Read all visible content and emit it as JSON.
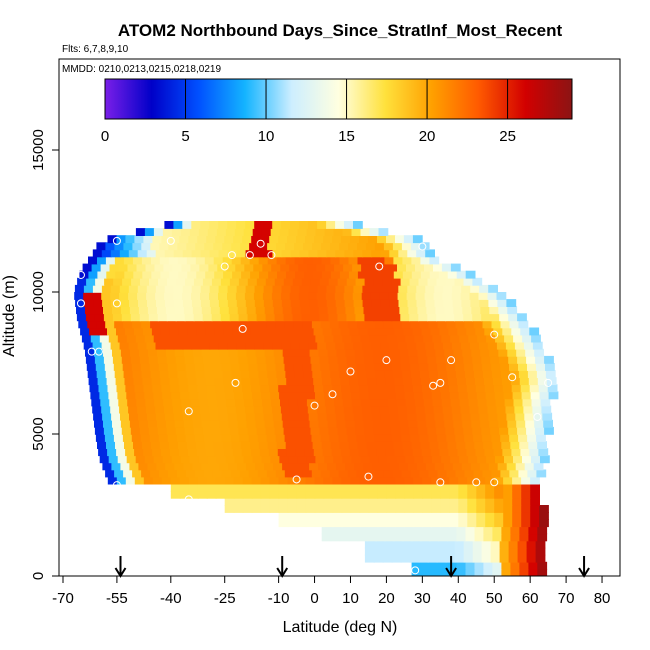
{
  "chart_data": {
    "type": "heatmap",
    "title": "ATOM2 Northbound Days_Since_StratInf_Most_Recent",
    "subtitle": "Flts: 6,7,8,9,10",
    "annotation": "MMDD: 0210,0213,0215,0218,0219",
    "xlabel": "Latitude (deg N)",
    "ylabel": "Altitude (m)",
    "xlim": [
      -70,
      85
    ],
    "ylim": [
      0,
      17000
    ],
    "x_tick_labels": [
      "-70",
      "-55",
      "-40",
      "-25",
      "-10",
      "0",
      "10",
      "20",
      "30",
      "40",
      "50",
      "60",
      "70",
      "80"
    ],
    "x_tick_values": [
      -70,
      -55,
      -40,
      -25,
      -10,
      0,
      10,
      20,
      30,
      40,
      50,
      60,
      70,
      80
    ],
    "y_tick_labels": [
      "0",
      "5000",
      "10000",
      "15000"
    ],
    "y_tick_values": [
      0,
      5000,
      10000,
      15000
    ],
    "colorbar": {
      "range": [
        0,
        29
      ],
      "tick_labels": [
        "0",
        "5",
        "10",
        "15",
        "20",
        "25"
      ],
      "tick_values": [
        0,
        5,
        10,
        15,
        20,
        25
      ],
      "colors": [
        "#7a1fe8",
        "#0000c8",
        "#0050ff",
        "#14b4ff",
        "#cdeeff",
        "#ffffe0",
        "#ffe13c",
        "#ffa000",
        "#ff5a00",
        "#d20000",
        "#8c1414"
      ]
    },
    "arrows_latitude": [
      -54,
      -9,
      38,
      75
    ],
    "marker_lats": [
      -25,
      -65,
      -40,
      -55,
      -15,
      -23,
      -18,
      18,
      30,
      -65,
      -60,
      -35,
      -62,
      -20,
      -65,
      33,
      0,
      50,
      10,
      35,
      -55,
      15,
      65,
      -35,
      -12,
      5,
      55,
      62,
      -55,
      -5,
      50,
      35,
      28,
      45,
      -22,
      38,
      20
    ],
    "marker_alts": [
      10900,
      10600,
      11800,
      9600,
      11700,
      11300,
      11300,
      10900,
      11600,
      9600,
      7900,
      5800,
      7900,
      8700,
      3200,
      6700,
      6000,
      8500,
      7200,
      6800,
      3200,
      3500,
      6800,
      2700,
      11300,
      6400,
      7000,
      5600,
      11800,
      3400,
      3300,
      3300,
      200,
      3300,
      6800,
      7600,
      7600
    ],
    "flight_profile": [
      [
        -60,
        11800
      ],
      [
        -62,
        11400
      ],
      [
        -64,
        11000
      ],
      [
        -66,
        10600
      ],
      [
        -67,
        10200
      ],
      [
        -68,
        9800
      ],
      [
        -68,
        9400
      ],
      [
        -67,
        9000
      ],
      [
        -66,
        8600
      ],
      [
        -65,
        8200
      ],
      [
        -64,
        7800
      ],
      [
        -63,
        7400
      ],
      [
        -63,
        7000
      ],
      [
        -62,
        6600
      ],
      [
        -62,
        6200
      ],
      [
        -61,
        5800
      ],
      [
        -61,
        5400
      ],
      [
        -60,
        5000
      ],
      [
        -59,
        4600
      ],
      [
        -58,
        4200
      ],
      [
        -57,
        3800
      ],
      [
        -56,
        3400
      ],
      [
        -55,
        3000
      ]
    ]
  }
}
